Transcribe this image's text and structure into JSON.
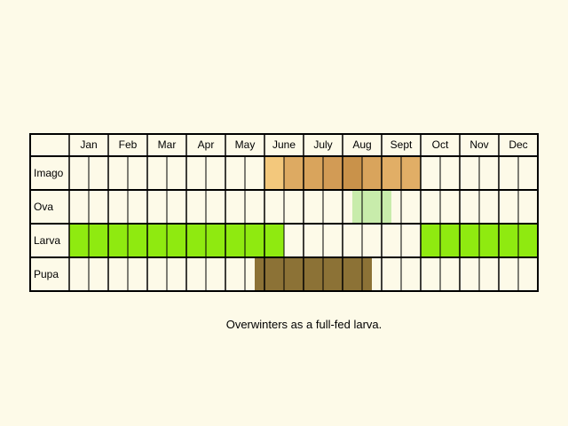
{
  "chart_data": {
    "type": "table",
    "months": [
      "Jan",
      "Feb",
      "Mar",
      "Apr",
      "May",
      "June",
      "July",
      "Aug",
      "Sept",
      "Oct",
      "Nov",
      "Dec"
    ],
    "cells_per_month": 2,
    "stages": [
      {
        "name": "Imago",
        "blocks": [
          {
            "from": 10.0,
            "to": 11.0,
            "color": "#f3c87c"
          },
          {
            "from": 11.0,
            "to": 12.0,
            "color": "#ddaa62"
          },
          {
            "from": 12.0,
            "to": 13.0,
            "color": "#d9a45c"
          },
          {
            "from": 13.0,
            "to": 14.0,
            "color": "#d29b55"
          },
          {
            "from": 14.0,
            "to": 15.0,
            "color": "#c9924a"
          },
          {
            "from": 15.0,
            "to": 16.0,
            "color": "#d9a45c"
          },
          {
            "from": 16.0,
            "to": 18.0,
            "color": "#e1ae66"
          }
        ]
      },
      {
        "name": "Ova",
        "blocks": [
          {
            "from": 14.5,
            "to": 16.5,
            "color": "#c8ecab"
          }
        ]
      },
      {
        "name": "Larva",
        "blocks": [
          {
            "from": 0,
            "to": 11,
            "color": "#8fea10"
          },
          {
            "from": 18,
            "to": 24,
            "color": "#8fea10"
          }
        ]
      },
      {
        "name": "Pupa",
        "blocks": [
          {
            "from": 9.5,
            "to": 15.5,
            "color": "#8c7236"
          }
        ]
      }
    ]
  },
  "caption": "Overwinters as a full-fed larva."
}
